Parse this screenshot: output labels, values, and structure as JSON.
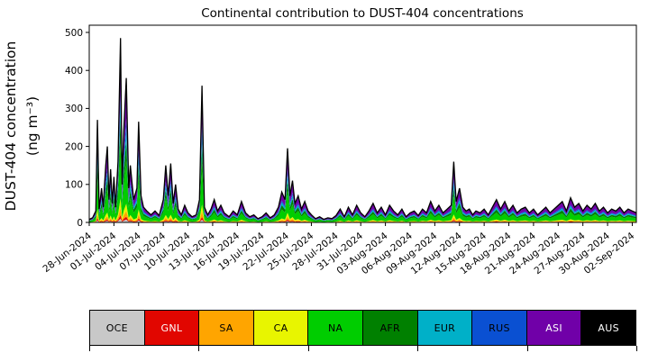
{
  "chart_data": {
    "type": "area",
    "stacked": true,
    "title": "Continental contribution to DUST-404 concentrations",
    "ylabel_line1": "DUST-404 concentration",
    "ylabel_line2": "(ng m⁻³)",
    "ylim": [
      0,
      500
    ],
    "y_ticks": [
      0,
      100,
      200,
      300,
      400,
      500
    ],
    "x_domain_days": [
      0,
      66.5
    ],
    "x_tick_days": [
      0,
      3,
      6,
      9,
      12,
      15,
      18,
      21,
      24,
      27,
      30,
      33,
      36,
      39,
      42,
      45,
      48,
      51,
      54,
      57,
      60,
      63,
      66
    ],
    "x_tick_labels": [
      "28-Jun-2024",
      "01-Jul-2024",
      "04-Jul-2024",
      "07-Jul-2024",
      "10-Jul-2024",
      "13-Jul-2024",
      "16-Jul-2024",
      "19-Jul-2024",
      "22-Jul-2024",
      "25-Jul-2024",
      "28-Jul-2024",
      "31-Jul-2024",
      "03-Aug-2024",
      "06-Aug-2024",
      "09-Aug-2024",
      "12-Aug-2024",
      "15-Aug-2024",
      "18-Aug-2024",
      "21-Aug-2024",
      "24-Aug-2024",
      "27-Aug-2024",
      "30-Aug-2024",
      "02-Sep-2024"
    ],
    "total_line_color": "#000000",
    "legend_position": "bottom",
    "grid": false,
    "series": [
      {
        "name": "OCE",
        "color": "#c8c8c8",
        "text": "#000000",
        "fraction": 0.02
      },
      {
        "name": "GNL",
        "color": "#e10600",
        "text": "#ffffff",
        "fraction": 0.02
      },
      {
        "name": "SA",
        "color": "#ffa500",
        "text": "#000000",
        "fraction": 0.04
      },
      {
        "name": "CA",
        "color": "#e8f500",
        "text": "#000000",
        "fraction": 0.05
      },
      {
        "name": "NA",
        "color": "#00cd00",
        "text": "#000000",
        "fraction": 0.3
      },
      {
        "name": "AFR",
        "color": "#008000",
        "text": "#000000",
        "fraction": 0.14
      },
      {
        "name": "EUR",
        "color": "#00b0c8",
        "text": "#000000",
        "fraction": 0.09
      },
      {
        "name": "RUS",
        "color": "#0a50d2",
        "text": "#000000",
        "fraction": 0.06
      },
      {
        "name": "ASI",
        "color": "#7000a8",
        "text": "#ffffff",
        "fraction": 0.23
      },
      {
        "name": "AUS",
        "color": "#000000",
        "text": "#ffffff",
        "fraction": 0.05
      }
    ],
    "samples_day_total": [
      [
        0,
        8
      ],
      [
        0.4,
        12
      ],
      [
        0.8,
        30
      ],
      [
        1,
        270
      ],
      [
        1.2,
        35
      ],
      [
        1.5,
        90
      ],
      [
        1.7,
        40
      ],
      [
        2,
        150
      ],
      [
        2.2,
        200
      ],
      [
        2.4,
        60
      ],
      [
        2.6,
        140
      ],
      [
        2.8,
        50
      ],
      [
        3,
        120
      ],
      [
        3.2,
        40
      ],
      [
        3.5,
        160
      ],
      [
        3.8,
        485
      ],
      [
        4,
        100
      ],
      [
        4.2,
        240
      ],
      [
        4.5,
        380
      ],
      [
        4.8,
        90
      ],
      [
        5,
        150
      ],
      [
        5.4,
        60
      ],
      [
        5.8,
        90
      ],
      [
        6,
        265
      ],
      [
        6.3,
        70
      ],
      [
        6.6,
        40
      ],
      [
        7,
        30
      ],
      [
        7.5,
        20
      ],
      [
        8,
        30
      ],
      [
        8.5,
        18
      ],
      [
        9,
        60
      ],
      [
        9.3,
        150
      ],
      [
        9.6,
        70
      ],
      [
        9.9,
        155
      ],
      [
        10.2,
        50
      ],
      [
        10.5,
        100
      ],
      [
        10.8,
        35
      ],
      [
        11.2,
        20
      ],
      [
        11.6,
        45
      ],
      [
        12,
        25
      ],
      [
        12.5,
        15
      ],
      [
        13,
        20
      ],
      [
        13.4,
        60
      ],
      [
        13.7,
        360
      ],
      [
        14,
        40
      ],
      [
        14.4,
        20
      ],
      [
        14.8,
        35
      ],
      [
        15.2,
        60
      ],
      [
        15.6,
        30
      ],
      [
        16,
        45
      ],
      [
        16.4,
        25
      ],
      [
        17,
        15
      ],
      [
        17.5,
        30
      ],
      [
        18,
        20
      ],
      [
        18.5,
        55
      ],
      [
        19,
        25
      ],
      [
        19.5,
        15
      ],
      [
        20,
        20
      ],
      [
        20.5,
        10
      ],
      [
        21,
        15
      ],
      [
        21.5,
        25
      ],
      [
        22,
        12
      ],
      [
        22.5,
        20
      ],
      [
        23,
        40
      ],
      [
        23.4,
        80
      ],
      [
        23.8,
        60
      ],
      [
        24.1,
        195
      ],
      [
        24.4,
        70
      ],
      [
        24.7,
        110
      ],
      [
        25,
        50
      ],
      [
        25.4,
        70
      ],
      [
        25.8,
        35
      ],
      [
        26.2,
        55
      ],
      [
        26.6,
        30
      ],
      [
        27,
        20
      ],
      [
        27.5,
        10
      ],
      [
        28,
        15
      ],
      [
        28.5,
        8
      ],
      [
        29,
        12
      ],
      [
        29.5,
        10
      ],
      [
        30,
        18
      ],
      [
        30.5,
        35
      ],
      [
        31,
        15
      ],
      [
        31.5,
        40
      ],
      [
        32,
        20
      ],
      [
        32.5,
        45
      ],
      [
        33,
        25
      ],
      [
        33.5,
        15
      ],
      [
        34,
        30
      ],
      [
        34.5,
        50
      ],
      [
        35,
        25
      ],
      [
        35.5,
        40
      ],
      [
        36,
        20
      ],
      [
        36.5,
        45
      ],
      [
        37,
        30
      ],
      [
        37.5,
        20
      ],
      [
        38,
        35
      ],
      [
        38.5,
        15
      ],
      [
        39,
        25
      ],
      [
        39.5,
        30
      ],
      [
        40,
        18
      ],
      [
        40.5,
        35
      ],
      [
        41,
        25
      ],
      [
        41.5,
        55
      ],
      [
        42,
        30
      ],
      [
        42.5,
        45
      ],
      [
        43,
        25
      ],
      [
        43.5,
        35
      ],
      [
        44,
        45
      ],
      [
        44.3,
        160
      ],
      [
        44.6,
        55
      ],
      [
        45,
        90
      ],
      [
        45.4,
        40
      ],
      [
        45.8,
        30
      ],
      [
        46.2,
        35
      ],
      [
        46.6,
        20
      ],
      [
        47,
        30
      ],
      [
        47.5,
        25
      ],
      [
        48,
        35
      ],
      [
        48.5,
        20
      ],
      [
        49,
        40
      ],
      [
        49.5,
        60
      ],
      [
        50,
        35
      ],
      [
        50.5,
        55
      ],
      [
        51,
        30
      ],
      [
        51.5,
        45
      ],
      [
        52,
        25
      ],
      [
        52.5,
        35
      ],
      [
        53,
        40
      ],
      [
        53.5,
        25
      ],
      [
        54,
        35
      ],
      [
        54.5,
        20
      ],
      [
        55,
        30
      ],
      [
        55.5,
        40
      ],
      [
        56,
        25
      ],
      [
        56.5,
        35
      ],
      [
        57,
        45
      ],
      [
        57.5,
        55
      ],
      [
        58,
        30
      ],
      [
        58.5,
        65
      ],
      [
        59,
        40
      ],
      [
        59.5,
        50
      ],
      [
        60,
        30
      ],
      [
        60.5,
        45
      ],
      [
        61,
        35
      ],
      [
        61.5,
        50
      ],
      [
        62,
        30
      ],
      [
        62.5,
        40
      ],
      [
        63,
        25
      ],
      [
        63.5,
        35
      ],
      [
        64,
        30
      ],
      [
        64.5,
        40
      ],
      [
        65,
        25
      ],
      [
        65.5,
        35
      ],
      [
        66,
        30
      ],
      [
        66.5,
        25
      ]
    ]
  }
}
